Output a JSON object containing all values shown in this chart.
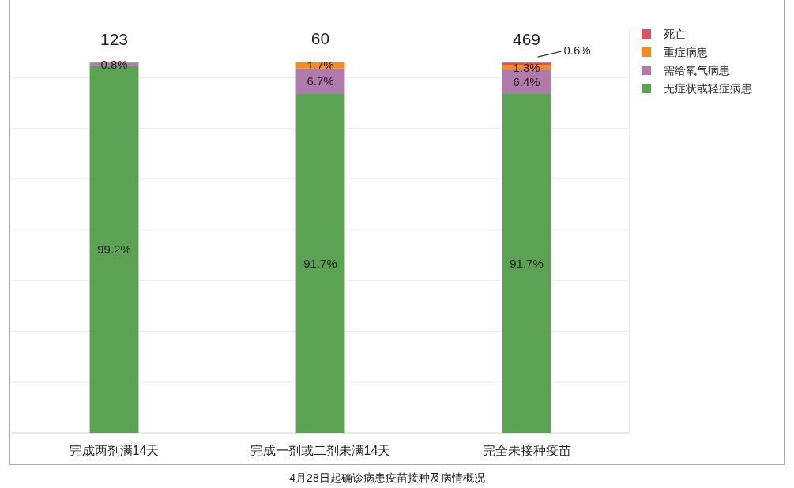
{
  "chart_data": {
    "type": "bar",
    "stacked": true,
    "title": "4月28日起确诊病患疫苗接种及病情概况",
    "categories": [
      "完成两剂满14天",
      "完成一剂或二剂未满14天",
      "完全未接种疫苗"
    ],
    "series": [
      {
        "name": "无症状或轻症病患",
        "color": "#5ba352",
        "values": [
          99.2,
          91.7,
          91.7
        ],
        "value_labels": [
          "99.2%",
          "91.7%",
          "91.7%"
        ]
      },
      {
        "name": "需给氧气病患",
        "color": "#b07aaa",
        "values": [
          0.8,
          6.7,
          6.4
        ],
        "value_labels": [
          "0.8%",
          "6.7%",
          "6.4%"
        ]
      },
      {
        "name": "重症病患",
        "color": "#f58b1f",
        "values": [
          null,
          1.7,
          1.3
        ],
        "value_labels": [
          null,
          "1.7%",
          "1.3%"
        ]
      },
      {
        "name": "死亡",
        "color": "#e0505a",
        "values": [
          null,
          null,
          0.6
        ],
        "value_labels": [
          null,
          null,
          "0.6%"
        ]
      }
    ],
    "ylim": [
      0,
      109
    ],
    "yticks": [
      {
        "value": 0,
        "label": null
      },
      {
        "value": 13.7,
        "label": null
      },
      {
        "value": 27.4,
        "label": null
      },
      {
        "value": 41.1,
        "label": null
      },
      {
        "value": 54.8,
        "label": null
      },
      {
        "value": 68.5,
        "label": null
      },
      {
        "value": 82.2,
        "label": null
      },
      {
        "value": 95.9,
        "label": null
      }
    ],
    "grid": "y",
    "legend": "top right",
    "tick_labels": "x",
    "annotations": [
      "123",
      "60",
      "469"
    ]
  }
}
